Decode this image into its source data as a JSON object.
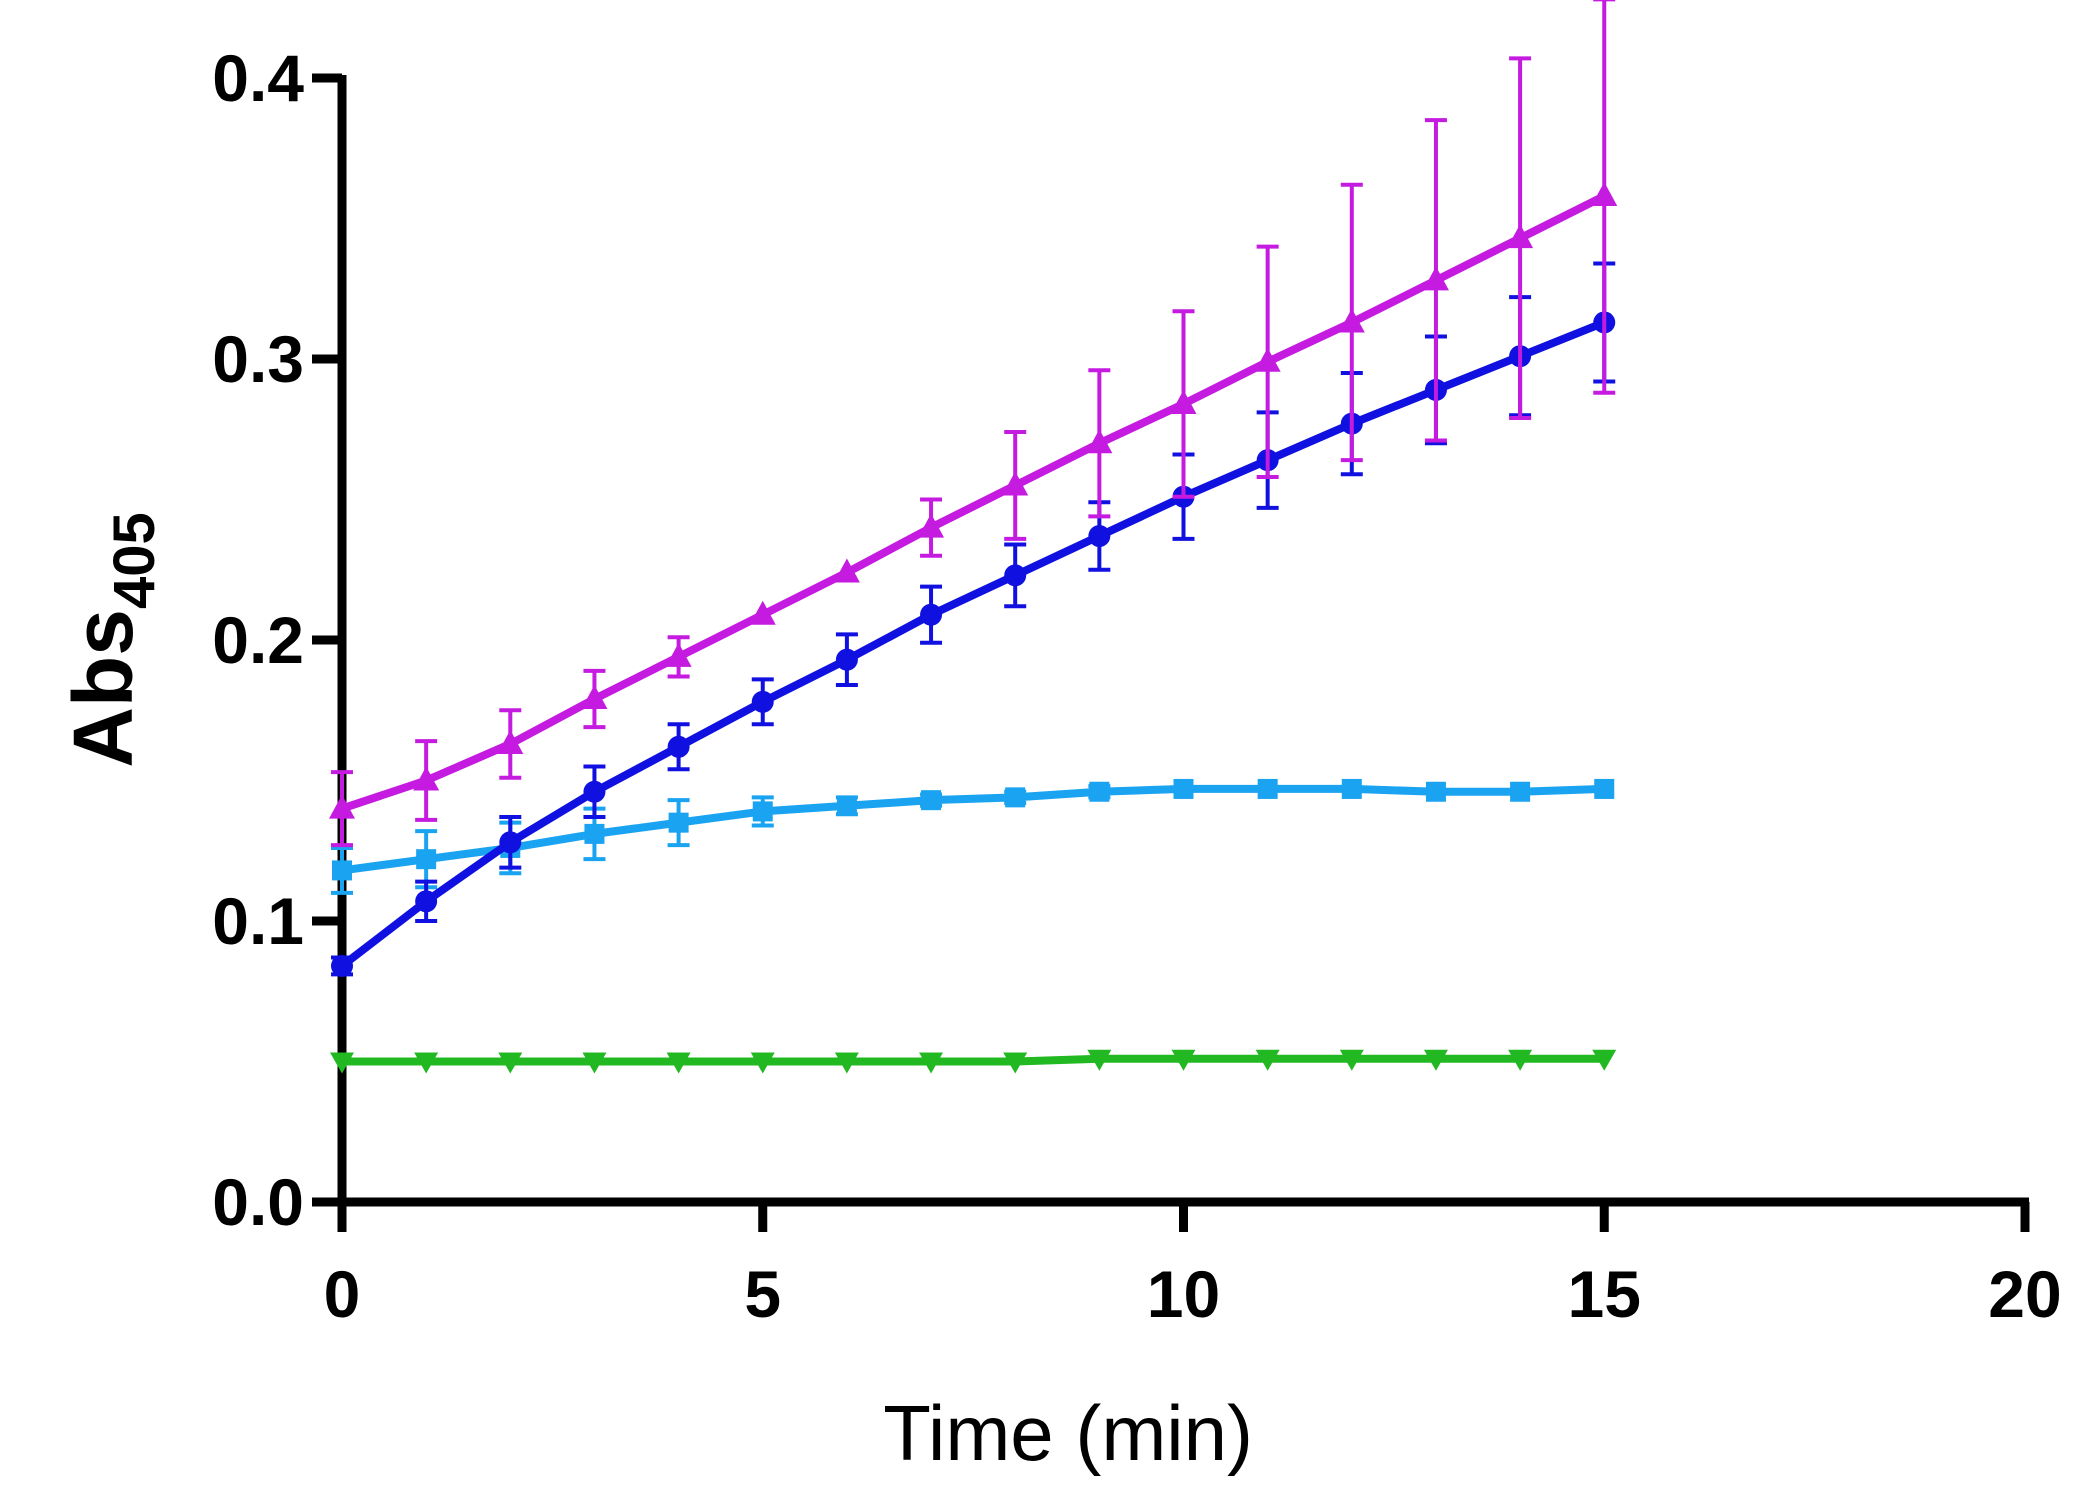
{
  "chart_data": {
    "type": "line",
    "title": "",
    "xlabel": "Time (min)",
    "ylabel": {
      "main": "Abs",
      "subscript": "405"
    },
    "xlim": [
      0,
      20
    ],
    "ylim": [
      0,
      0.4
    ],
    "xticks": [
      0,
      5,
      10,
      15,
      20
    ],
    "xtick_labels": [
      "0",
      "5",
      "10",
      "15",
      "20"
    ],
    "yticks": [
      0,
      0.1,
      0.2,
      0.3,
      0.4
    ],
    "ytick_labels": [
      "0.0",
      "0.1",
      "0.2",
      "0.3",
      "0.4"
    ],
    "grid": false,
    "legend": "none",
    "x": [
      0,
      1,
      2,
      3,
      4,
      5,
      6,
      7,
      8,
      9,
      10,
      11,
      12,
      13,
      14,
      15
    ],
    "series": [
      {
        "name": "magenta-triangle",
        "color": "#c51ae0",
        "marker": "triangle-up",
        "values": [
          0.14,
          0.15,
          0.163,
          0.179,
          0.194,
          0.209,
          0.224,
          0.24,
          0.255,
          0.27,
          0.284,
          0.299,
          0.313,
          0.328,
          0.343,
          0.358
        ],
        "errors": [
          0.013,
          0.014,
          0.012,
          0.01,
          0.007,
          0.001,
          0.001,
          0.01,
          0.019,
          0.026,
          0.033,
          0.041,
          0.049,
          0.057,
          0.064,
          0.07
        ]
      },
      {
        "name": "blue-circle",
        "color": "#1010e0",
        "marker": "circle",
        "values": [
          0.084,
          0.107,
          0.128,
          0.146,
          0.162,
          0.178,
          0.193,
          0.209,
          0.223,
          0.237,
          0.251,
          0.264,
          0.277,
          0.289,
          0.301,
          0.313
        ],
        "errors": [
          0.003,
          0.007,
          0.009,
          0.009,
          0.008,
          0.008,
          0.009,
          0.01,
          0.011,
          0.012,
          0.015,
          0.017,
          0.018,
          0.019,
          0.021,
          0.021
        ]
      },
      {
        "name": "light-blue-square",
        "color": "#1aa3f0",
        "marker": "square",
        "values": [
          0.118,
          0.122,
          0.126,
          0.131,
          0.135,
          0.139,
          0.141,
          0.143,
          0.144,
          0.146,
          0.147,
          0.147,
          0.147,
          0.146,
          0.146,
          0.147
        ],
        "errors": [
          0.008,
          0.01,
          0.009,
          0.009,
          0.008,
          0.005,
          0.003,
          0.002,
          0.002,
          0.002,
          0.001,
          0.001,
          0.001,
          0.001,
          0.001,
          0.001
        ]
      },
      {
        "name": "green-triangle-down",
        "color": "#22b822",
        "marker": "triangle-down",
        "values": [
          0.05,
          0.05,
          0.05,
          0.05,
          0.05,
          0.05,
          0.05,
          0.05,
          0.05,
          0.051,
          0.051,
          0.051,
          0.051,
          0.051,
          0.051,
          0.051
        ],
        "errors": [
          0.001,
          0.001,
          0.001,
          0.001,
          0.001,
          0.001,
          0.001,
          0.001,
          0.001,
          0.001,
          0.001,
          0.001,
          0.001,
          0.001,
          0.001,
          0.001
        ]
      }
    ]
  }
}
